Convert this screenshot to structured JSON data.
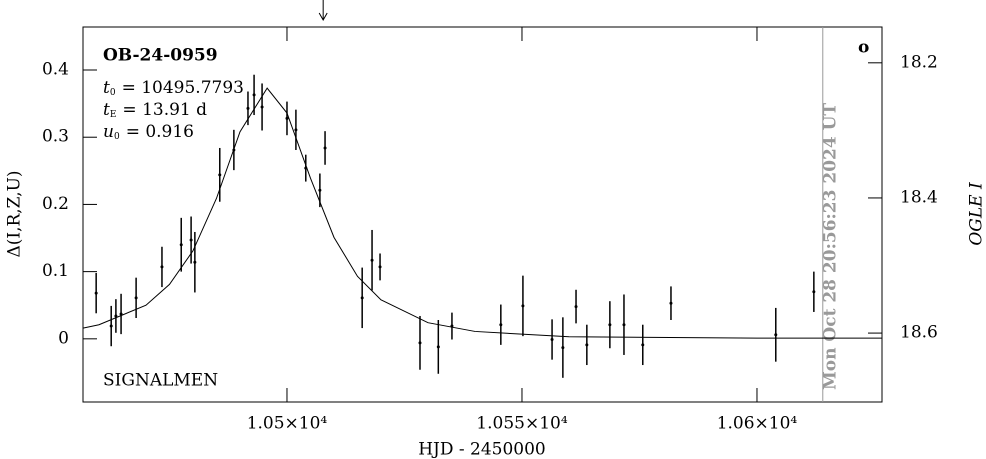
{
  "chart_data": {
    "type": "scatter",
    "title": "OB-24-0959",
    "parameters": [
      {
        "symbol": "t",
        "sub": "0",
        "text": "= 10495.7793"
      },
      {
        "symbol": "t",
        "sub": "E",
        "text": "= 13.91 d"
      },
      {
        "symbol": "u",
        "sub": "0",
        "text": "= 0.916"
      }
    ],
    "note": "SIGNALMEN",
    "timestamp": "Mon Oct 28 20:56:23 2024 UT",
    "corner_mark": "o",
    "x_label": "HJD - 2450000",
    "y_label": "Δ(I,R,Z,U)",
    "y2_label": "OGLE I",
    "xlim": [
      10456.6,
      10626.6
    ],
    "xticks": [
      {
        "value": 10500,
        "label": "1.05×10⁴"
      },
      {
        "value": 10550,
        "label": "1.055×10⁴"
      },
      {
        "value": 10600,
        "label": "1.06×10⁴"
      }
    ],
    "ylim": [
      -0.094,
      0.464
    ],
    "yticks": [
      0,
      0.1,
      0.2,
      0.3,
      0.4
    ],
    "y2lim": [
      18.702,
      18.147
    ],
    "y2ticks": [
      18.2,
      18.4,
      18.6
    ],
    "color": "#000000",
    "x": [
      10459.4,
      10462.6,
      10463.6,
      10464.7,
      10467.9,
      10473.4,
      10477.5,
      10479.6,
      10480.4,
      10485.7,
      10488.7,
      10491.7,
      10493.0,
      10494.7,
      10500.0,
      10501.9,
      10504.0,
      10507.0,
      10508.1,
      10516.0,
      10518.1,
      10519.8,
      10528.3,
      10532.2,
      10535.1,
      10545.5,
      10550.2,
      10556.4,
      10558.7,
      10561.5,
      10563.8,
      10568.7,
      10571.7,
      10575.7,
      10581.7,
      10604.0,
      10612.1
    ],
    "values": [
      0.068,
      0.019,
      0.034,
      0.037,
      0.061,
      0.107,
      0.14,
      0.147,
      0.114,
      0.244,
      0.281,
      0.343,
      0.363,
      0.345,
      0.328,
      0.311,
      0.254,
      0.221,
      0.284,
      0.061,
      0.117,
      0.107,
      -0.006,
      -0.012,
      0.019,
      0.021,
      0.049,
      -0.001,
      -0.013,
      0.048,
      -0.009,
      0.021,
      0.021,
      -0.009,
      0.053,
      0.006,
      0.07
    ],
    "errors": [
      0.03,
      0.03,
      0.025,
      0.03,
      0.03,
      0.03,
      0.04,
      0.035,
      0.045,
      0.04,
      0.03,
      0.025,
      0.03,
      0.035,
      0.025,
      0.03,
      0.02,
      0.025,
      0.025,
      0.045,
      0.045,
      0.02,
      0.04,
      0.04,
      0.02,
      0.03,
      0.045,
      0.03,
      0.045,
      0.025,
      0.03,
      0.035,
      0.045,
      0.03,
      0.025,
      0.04,
      0.03
    ],
    "model": {
      "x": [
        10456.6,
        10460,
        10470,
        10475,
        10480,
        10485,
        10490,
        10495.78,
        10500,
        10505,
        10510,
        10515,
        10520,
        10530,
        10540,
        10560,
        10600,
        10626.6
      ],
      "values": [
        0.016,
        0.021,
        0.05,
        0.081,
        0.131,
        0.209,
        0.308,
        0.373,
        0.336,
        0.239,
        0.151,
        0.093,
        0.058,
        0.024,
        0.011,
        0.003,
        0.001,
        0.001
      ]
    },
    "date_line": 10614,
    "arrow_x": 10507.7
  }
}
